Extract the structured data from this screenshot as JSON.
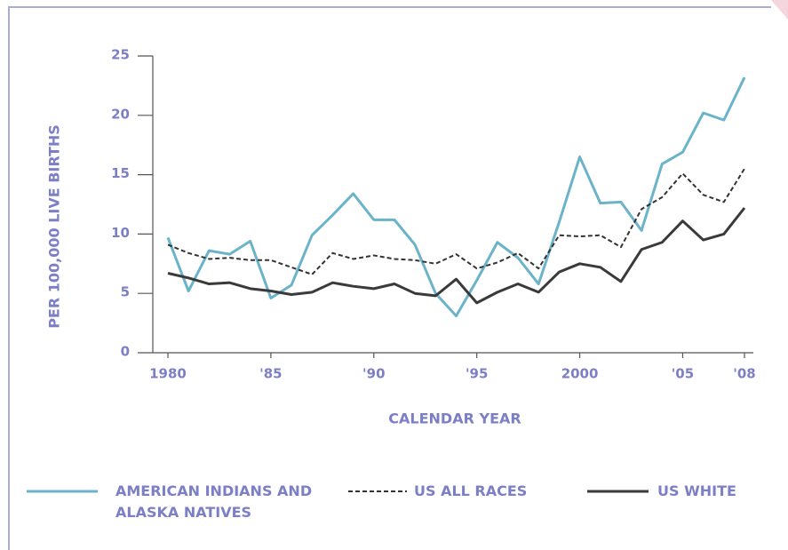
{
  "chart_data": {
    "type": "line",
    "y_label": "PER 100,000 LIVE BIRTHS",
    "x_label": "CALENDAR YEAR",
    "x": [
      1980,
      1981,
      1982,
      1983,
      1984,
      1985,
      1986,
      1987,
      1988,
      1989,
      1990,
      1991,
      1992,
      1993,
      1994,
      1995,
      1996,
      1997,
      1998,
      1999,
      2000,
      2001,
      2002,
      2003,
      2004,
      2005,
      2006,
      2007,
      2008
    ],
    "series": [
      {
        "name": "AMERICAN INDIANS AND ALASKA NATIVES",
        "color": "#6bb3c9",
        "dash": "solid",
        "values": [
          9.7,
          5.2,
          8.6,
          8.3,
          9.4,
          4.6,
          5.7,
          9.9,
          11.6,
          13.4,
          11.2,
          11.2,
          9.1,
          5.0,
          3.1,
          6.1,
          9.3,
          8.0,
          5.8,
          11.0,
          16.5,
          12.6,
          12.7,
          10.3,
          15.9,
          16.9,
          20.2,
          19.6,
          23.2
        ]
      },
      {
        "name": "US ALL RACES",
        "color": "#333333",
        "dash": "dashed",
        "values": [
          9.1,
          8.4,
          7.9,
          8.0,
          7.8,
          7.8,
          7.2,
          6.6,
          8.4,
          7.9,
          8.2,
          7.9,
          7.8,
          7.5,
          8.3,
          7.1,
          7.6,
          8.4,
          7.1,
          9.9,
          9.8,
          9.9,
          8.9,
          12.1,
          13.1,
          15.1,
          13.3,
          12.7,
          15.5
        ]
      },
      {
        "name": "US WHITE",
        "color": "#3a3a3a",
        "dash": "solid",
        "values": [
          6.7,
          6.3,
          5.8,
          5.9,
          5.4,
          5.2,
          4.9,
          5.1,
          5.9,
          5.6,
          5.4,
          5.8,
          5.0,
          4.8,
          6.2,
          4.2,
          5.1,
          5.8,
          5.1,
          6.8,
          7.5,
          7.2,
          6.0,
          8.7,
          9.3,
          11.1,
          9.5,
          10.0,
          12.2
        ]
      }
    ],
    "xlim": [
      1980,
      2008
    ],
    "xticks": [
      1980,
      {
        "value": 1985,
        "label": "'85"
      },
      {
        "value": 1990,
        "label": "'90"
      },
      {
        "value": 1995,
        "label": "'95"
      },
      2000,
      {
        "value": 2005,
        "label": "'05"
      },
      {
        "value": 2008,
        "label": "'08"
      }
    ],
    "ylim": [
      0,
      25
    ],
    "yticks": [
      0,
      5,
      10,
      15,
      20,
      25
    ],
    "grid": false,
    "legend": "bottom"
  }
}
